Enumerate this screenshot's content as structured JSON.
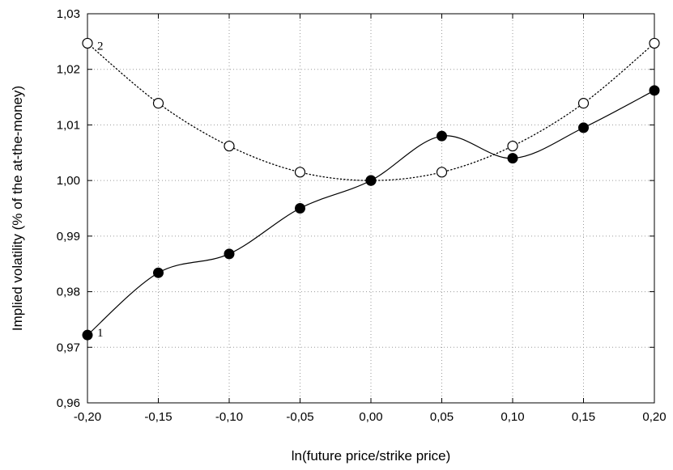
{
  "chart_data": {
    "type": "line",
    "title": "",
    "xlabel": "ln(future price/strike price)",
    "ylabel": "Implied volatility (% of the at-the-money)",
    "xlim": [
      -0.2,
      0.2
    ],
    "ylim": [
      0.96,
      1.03
    ],
    "x_ticks": [
      -0.2,
      -0.15,
      -0.1,
      -0.05,
      0.0,
      0.05,
      0.1,
      0.15,
      0.2
    ],
    "x_tick_labels": [
      "-0,20",
      "-0,15",
      "-0,10",
      "-0,05",
      "0,00",
      "0,05",
      "0,10",
      "0,15",
      "0,20"
    ],
    "y_ticks": [
      0.96,
      0.97,
      0.98,
      0.99,
      1.0,
      1.01,
      1.02,
      1.03
    ],
    "y_tick_labels": [
      "0,96",
      "0,97",
      "0,98",
      "0,99",
      "1,00",
      "1,01",
      "1,02",
      "1,03"
    ],
    "grid": true,
    "series": [
      {
        "label": "1",
        "marker": "filled-circle",
        "line_style": "solid",
        "color": "#000000",
        "x": [
          -0.2,
          -0.15,
          -0.1,
          -0.05,
          0.0,
          0.05,
          0.1,
          0.15,
          0.2
        ],
        "y": [
          0.9722,
          0.9834,
          0.9868,
          0.995,
          1.0,
          1.008,
          1.004,
          1.0095,
          1.0162
        ]
      },
      {
        "label": "2",
        "marker": "open-circle",
        "line_style": "dotted",
        "color": "#000000",
        "x": [
          -0.2,
          -0.15,
          -0.1,
          -0.05,
          0.0,
          0.05,
          0.1,
          0.15,
          0.2
        ],
        "y": [
          1.0247,
          1.0139,
          1.0062,
          1.0015,
          1.0,
          1.0015,
          1.0062,
          1.0139,
          1.0247
        ]
      }
    ]
  }
}
